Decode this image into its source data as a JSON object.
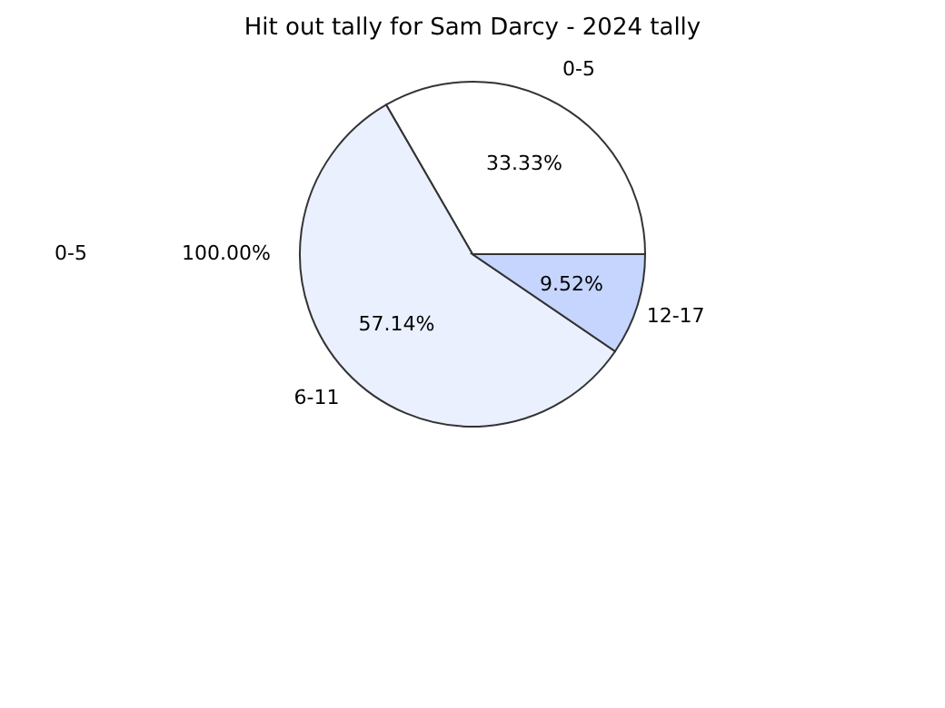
{
  "chart_data": {
    "type": "pie",
    "title": "Hit out tally for Sam Darcy - 2024 tally",
    "categories": [
      "0-5",
      "6-11",
      "12-17"
    ],
    "values": [
      33.33,
      57.14,
      9.52
    ],
    "colors": [
      "#ffffff",
      "#eaf0fe",
      "#c5d5fe"
    ],
    "value_labels": [
      "33.33%",
      "57.14%",
      "9.52%"
    ],
    "annotations": [
      "0-5",
      "100.00%"
    ],
    "legend": false
  }
}
